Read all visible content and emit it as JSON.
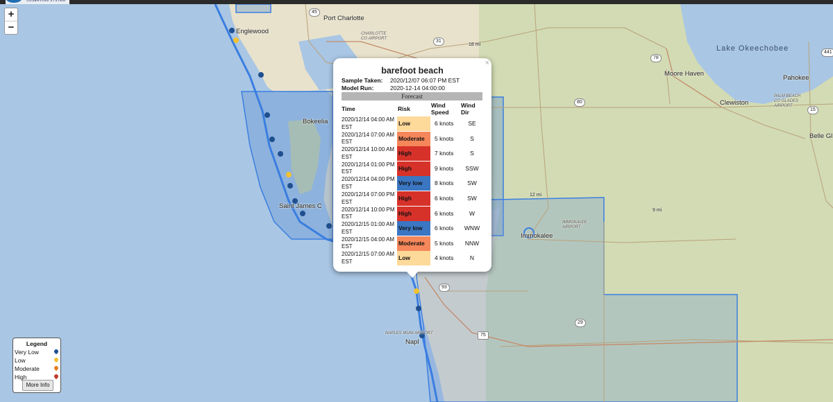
{
  "map": {
    "places": [
      {
        "id": "port-charlotte",
        "label": "Port Charlotte"
      },
      {
        "id": "englewood",
        "label": "Englewood"
      },
      {
        "id": "charlotte-airport",
        "label": "CHARLOTTE CO AIRPORT"
      },
      {
        "id": "lake-okeechobee",
        "label": "Lake Okeechobee"
      },
      {
        "id": "moore-haven",
        "label": "Moore Haven"
      },
      {
        "id": "pahokee",
        "label": "Pahokee"
      },
      {
        "id": "palm-beach-airport",
        "label": "PALM BEACH CO GLADES AIRPORT"
      },
      {
        "id": "clewiston",
        "label": "Clewiston"
      },
      {
        "id": "belle-glade",
        "label": "Belle Gl"
      },
      {
        "id": "bokeelia",
        "label": "Bokeelia"
      },
      {
        "id": "saint-james-city",
        "label": "Saint James C"
      },
      {
        "id": "immokalee",
        "label": "Immokalee"
      },
      {
        "id": "immokalee-airport",
        "label": "IMMOKALEE AIRPORT"
      },
      {
        "id": "naples",
        "label": "Napl"
      },
      {
        "id": "naples-airport",
        "label": "NAPLES MUNI AIRPORT"
      }
    ],
    "shields": [
      "45",
      "31",
      "78",
      "80",
      "29",
      "75",
      "93",
      "15",
      "441"
    ],
    "distance_labels": [
      "18 mi",
      "12 mi",
      "9 mi"
    ]
  },
  "zoom": {
    "in": "+",
    "out": "−"
  },
  "popup": {
    "close": "×",
    "title": "barefoot beach",
    "sample_label": "Sample Taken:",
    "sample_value": "2020/12/07 06:07 PM EST",
    "model_label": "Model Run:",
    "model_value": "2020-12-14 04:00:00",
    "forecast_heading": "Forecast",
    "headers": {
      "time": "Time",
      "risk": "Risk",
      "speed": "Wind Speed",
      "dir": "Wind Dir"
    },
    "rows": [
      {
        "time": "2020/12/14 04:00 AM EST",
        "risk": "Low",
        "speed": "6 knots",
        "dir": "SE"
      },
      {
        "time": "2020/12/14 07:00 AM EST",
        "risk": "Moderate",
        "speed": "5 knots",
        "dir": "S"
      },
      {
        "time": "2020/12/14 10:00 AM EST",
        "risk": "High",
        "speed": "7 knots",
        "dir": "S"
      },
      {
        "time": "2020/12/14 01:00 PM EST",
        "risk": "High",
        "speed": "9 knots",
        "dir": "SSW"
      },
      {
        "time": "2020/12/14 04:00 PM EST",
        "risk": "Very low",
        "speed": "8 knots",
        "dir": "SW"
      },
      {
        "time": "2020/12/14 07:00 PM EST",
        "risk": "High",
        "speed": "6 knots",
        "dir": "SW"
      },
      {
        "time": "2020/12/14 10:00 PM EST",
        "risk": "High",
        "speed": "6 knots",
        "dir": "W"
      },
      {
        "time": "2020/12/15 01:00 AM EST",
        "risk": "Very low",
        "speed": "6 knots",
        "dir": "WNW"
      },
      {
        "time": "2020/12/15 04:00 AM EST",
        "risk": "Moderate",
        "speed": "5 knots",
        "dir": "NNW"
      },
      {
        "time": "2020/12/15 07:00 AM EST",
        "risk": "Low",
        "speed": "4 knots",
        "dir": "N"
      }
    ],
    "risk_colors": {
      "Low": "#fdd99a",
      "Moderate": "#f5875a",
      "High": "#d7322a",
      "Very low": "#3b76c2"
    }
  },
  "legend": {
    "title": "Legend",
    "items": [
      {
        "label": "Very Low",
        "color": "#1f4f8f"
      },
      {
        "label": "Low",
        "color": "#f2c230"
      },
      {
        "label": "Moderate",
        "color": "#e67e22"
      },
      {
        "label": "High",
        "color": "#c0392b"
      }
    ],
    "more_info": "More Info"
  }
}
